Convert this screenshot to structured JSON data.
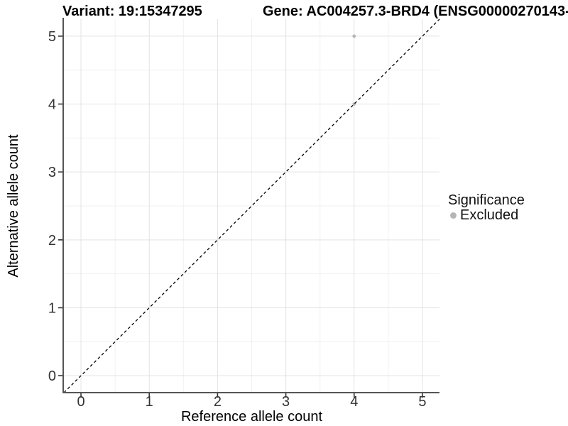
{
  "title": {
    "variant": "Variant: 19:15347295",
    "gene": "Gene: AC004257.3-BRD4 (ENSG00000270143-"
  },
  "chart_data": {
    "type": "scatter",
    "title": "Variant: 19:15347295   Gene: AC004257.3-BRD4 (ENSG00000270143-",
    "xlabel": "Reference allele count",
    "ylabel": "Alternative allele count",
    "xlim": [
      -0.25,
      5.25
    ],
    "ylim": [
      -0.25,
      5.25
    ],
    "x_ticks": [
      0,
      1,
      2,
      3,
      4,
      5
    ],
    "y_ticks": [
      0,
      1,
      2,
      3,
      4,
      5
    ],
    "x_minor": [
      0.5,
      1.5,
      2.5,
      3.5,
      4.5
    ],
    "y_minor": [
      0.5,
      1.5,
      2.5,
      3.5,
      4.5
    ],
    "grid": true,
    "identity_line": {
      "style": "dashed",
      "slope": 1,
      "intercept": 0,
      "color": "#000000"
    },
    "series": [
      {
        "name": "Excluded",
        "color": "#b5b5b5",
        "points": [
          {
            "x": 4,
            "y": 5
          },
          {
            "x": 4,
            "y": 4
          }
        ]
      }
    ],
    "legend": {
      "position": "right",
      "title": "Significance",
      "entries": [
        {
          "label": "Excluded",
          "color": "#b5b5b5"
        }
      ]
    }
  },
  "colors": {
    "background": "#ffffff",
    "grid_major": "#e3e3e3",
    "grid_minor": "#f1f1f1",
    "axis_line": "#555555",
    "tick_mark": "#333333",
    "tick_label": "#333333",
    "point": "#b5b5b5"
  }
}
